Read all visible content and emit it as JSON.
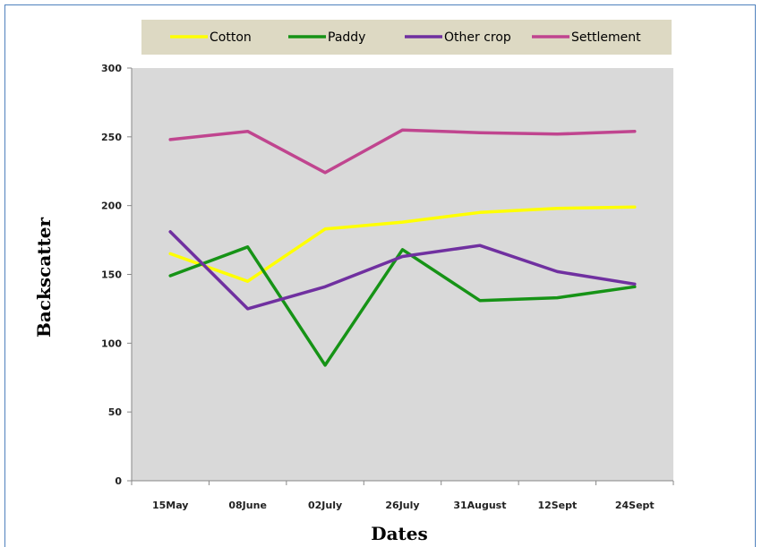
{
  "chart_data": {
    "type": "line",
    "title": "",
    "xlabel": "Dates",
    "ylabel": "Backscatter",
    "categories": [
      "15May",
      "08June",
      "02July",
      "26July",
      "31August",
      "12Sept",
      "24Sept"
    ],
    "ylim": [
      0,
      300
    ],
    "yticks": [
      0,
      50,
      100,
      150,
      200,
      250,
      300
    ],
    "grid": false,
    "legend_position": "top",
    "plot_background": "#d9d9d9",
    "legend_background": "#ddd9c3",
    "series": [
      {
        "name": "Cotton",
        "color": "#ffff00",
        "values": [
          165,
          145,
          183,
          188,
          195,
          198,
          199
        ]
      },
      {
        "name": "Paddy",
        "color": "#169316",
        "values": [
          149,
          170,
          84,
          168,
          131,
          133,
          141
        ]
      },
      {
        "name": "Other crop",
        "color": "#7030a0",
        "values": [
          181,
          125,
          141,
          163,
          171,
          152,
          143
        ]
      },
      {
        "name": "Settlement",
        "color": "#c0458f",
        "values": [
          248,
          254,
          224,
          255,
          253,
          252,
          254
        ]
      }
    ]
  }
}
